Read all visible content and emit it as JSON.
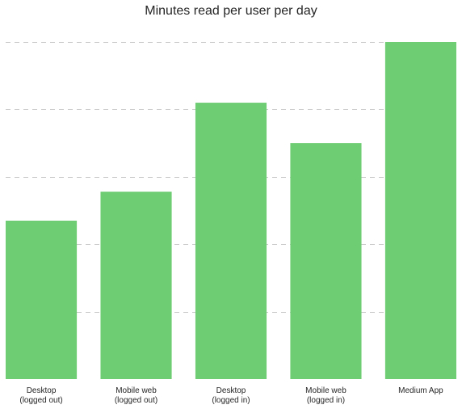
{
  "chart_data": {
    "type": "bar",
    "title": "Minutes read per user per day",
    "categories": [
      [
        "Desktop",
        "(logged out)"
      ],
      [
        "Mobile web",
        "(logged out)"
      ],
      [
        "Desktop",
        "(logged in)"
      ],
      [
        "Mobile web",
        "(logged in)"
      ],
      [
        "Medium App"
      ]
    ],
    "values": [
      2.35,
      2.78,
      4.1,
      3.5,
      5.0
    ],
    "ylim": [
      0,
      5
    ],
    "yticks": [
      1,
      2,
      3,
      4,
      5
    ],
    "show_y_tick_labels": false,
    "grid": true,
    "grid_axis": "y",
    "grid_style": "dashed",
    "legend": "none",
    "colors": {
      "bar": "#6ecc73",
      "grid": "#cccccc",
      "text": "#262626",
      "background": "#ffffff"
    }
  }
}
